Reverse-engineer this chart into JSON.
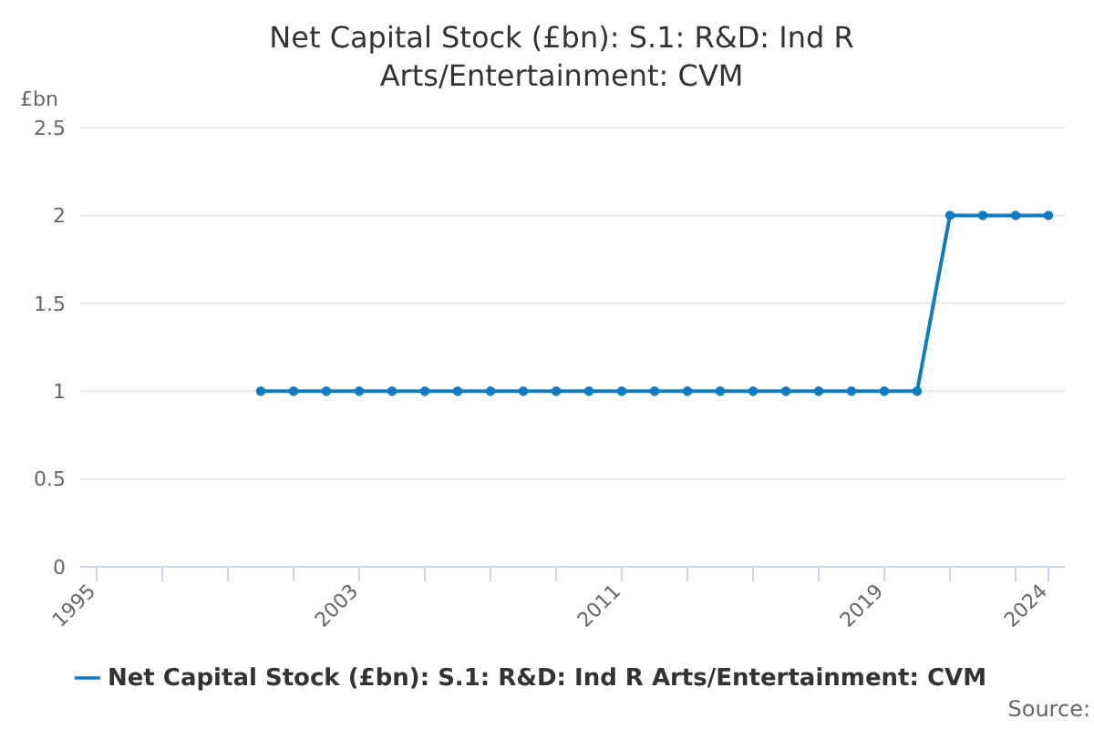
{
  "chart_data": {
    "type": "line",
    "title": "Net Capital Stock (£bn): S.1: R&D: Ind R Arts/Entertainment: CVM",
    "ylabel": "£bn",
    "annotations": [
      "Source:"
    ],
    "x": [
      2000,
      2001,
      2002,
      2003,
      2004,
      2005,
      2006,
      2007,
      2008,
      2009,
      2010,
      2011,
      2012,
      2013,
      2014,
      2015,
      2016,
      2017,
      2018,
      2019,
      2020,
      2021,
      2022,
      2023,
      2024
    ],
    "series": [
      {
        "name": "Net Capital Stock (£bn): S.1: R&D: Ind R Arts/Entertainment: CVM",
        "color": "#0f7bc1",
        "values": [
          1,
          1,
          1,
          1,
          1,
          1,
          1,
          1,
          1,
          1,
          1,
          1,
          1,
          1,
          1,
          1,
          1,
          1,
          1,
          1,
          1,
          2,
          2,
          2,
          2
        ]
      }
    ],
    "xlim": [
      1994.5,
      2024.5
    ],
    "xticks": [
      1995,
      {
        "value": 1997,
        "label": null
      },
      {
        "value": 1999,
        "label": null
      },
      {
        "value": 2001,
        "label": null
      },
      2003,
      {
        "value": 2005,
        "label": null
      },
      {
        "value": 2007,
        "label": null
      },
      {
        "value": 2009,
        "label": null
      },
      2011,
      {
        "value": 2013,
        "label": null
      },
      {
        "value": 2015,
        "label": null
      },
      {
        "value": 2017,
        "label": null
      },
      2019,
      {
        "value": 2021,
        "label": null
      },
      {
        "value": 2023,
        "label": null
      },
      2024
    ],
    "ylim": [
      0,
      2.5
    ],
    "yticks": [
      0,
      0.5,
      1,
      1.5,
      2,
      2.5
    ],
    "grid": "y",
    "legend": "bottom",
    "marker": "circle",
    "line_style": "solid"
  }
}
